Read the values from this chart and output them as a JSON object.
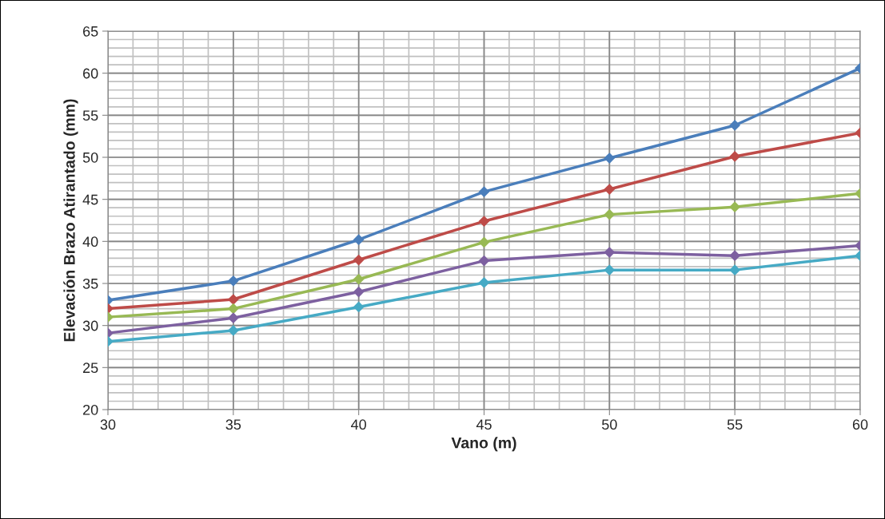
{
  "chart_data": {
    "type": "line",
    "xlabel": "Vano (m)",
    "ylabel": "Elevación Brazo Atirantado (mm)",
    "x": [
      30,
      35,
      40,
      45,
      50,
      55,
      60
    ],
    "series": [
      {
        "color": "#4a7ebb",
        "values": [
          33,
          35.3,
          40.2,
          45.9,
          49.9,
          53.8,
          60.6
        ]
      },
      {
        "color": "#be4b48",
        "values": [
          32,
          33.1,
          37.8,
          42.4,
          46.2,
          50.1,
          52.9
        ]
      },
      {
        "color": "#98b954",
        "values": [
          31,
          32,
          35.5,
          39.9,
          43.2,
          44.1,
          45.7
        ]
      },
      {
        "color": "#7d60a0",
        "values": [
          29.1,
          30.9,
          34,
          37.7,
          38.7,
          38.3,
          39.5
        ]
      },
      {
        "color": "#46aac5",
        "values": [
          28.1,
          29.4,
          32.2,
          35.1,
          36.6,
          36.6,
          38.3
        ]
      }
    ],
    "xlim": [
      30,
      60
    ],
    "ylim": [
      20,
      65
    ],
    "xticks": [
      30,
      35,
      40,
      45,
      50,
      55,
      60
    ],
    "yticks": [
      20,
      25,
      30,
      35,
      40,
      45,
      50,
      55,
      60,
      65
    ],
    "grid": true,
    "marker": "diamond",
    "line_style": "solid"
  }
}
